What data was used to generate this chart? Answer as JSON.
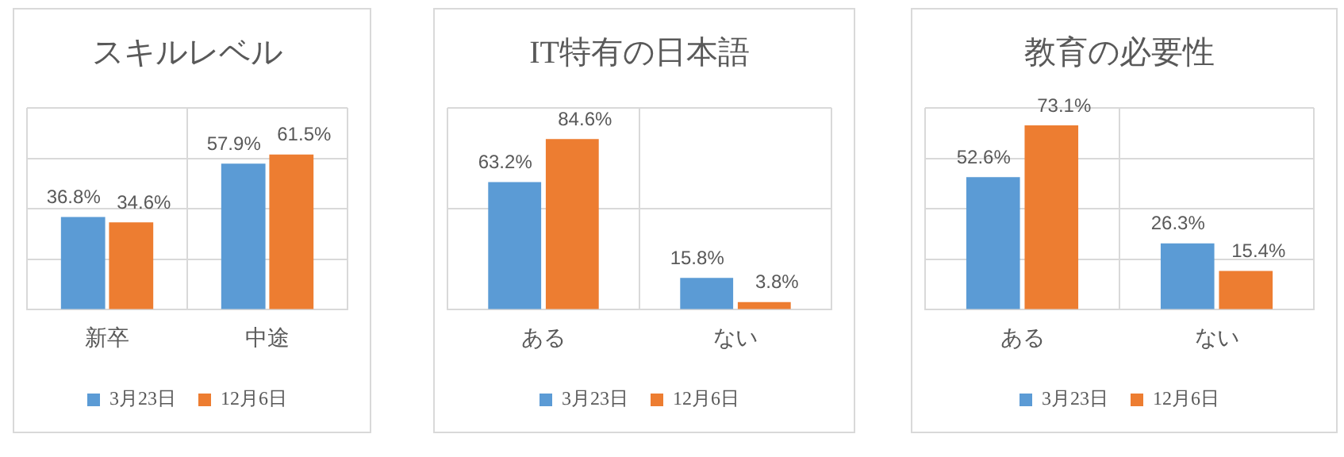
{
  "chart_data": [
    {
      "type": "bar",
      "title": "スキルレベル",
      "categories": [
        "新卒",
        "中途"
      ],
      "series": [
        {
          "name": "3月23日",
          "color": "#5b9bd5",
          "values": [
            36.8,
            57.9
          ],
          "value_labels": [
            "36.8%",
            "57.9%"
          ]
        },
        {
          "name": "12月6日",
          "color": "#ed7d31",
          "values": [
            34.6,
            61.5
          ],
          "value_labels": [
            "34.6%",
            "61.5%"
          ]
        }
      ],
      "ylim": [
        0,
        80
      ],
      "yticks": [
        {
          "value": 0,
          "label": null
        },
        {
          "value": 20,
          "label": null
        },
        {
          "value": 40,
          "label": null
        },
        {
          "value": 60,
          "label": null
        },
        {
          "value": 80,
          "label": null
        }
      ],
      "grid": true,
      "legend": "bottom",
      "tick_labels": "x"
    },
    {
      "type": "bar",
      "title": "IT特有の日本語",
      "categories": [
        "ある",
        "ない"
      ],
      "series": [
        {
          "name": "3月23日",
          "color": "#5b9bd5",
          "values": [
            63.2,
            15.8
          ],
          "value_labels": [
            "63.2%",
            "15.8%"
          ]
        },
        {
          "name": "12月6日",
          "color": "#ed7d31",
          "values": [
            84.6,
            3.8
          ],
          "value_labels": [
            "84.6%",
            "3.8%"
          ]
        }
      ],
      "ylim": [
        0,
        100
      ],
      "yticks": [
        {
          "value": 0,
          "label": null
        },
        {
          "value": 50,
          "label": null
        },
        {
          "value": 100,
          "label": null
        }
      ],
      "grid": true,
      "legend": "bottom",
      "tick_labels": "x"
    },
    {
      "type": "bar",
      "title": "教育の必要性",
      "categories": [
        "ある",
        "ない"
      ],
      "series": [
        {
          "name": "3月23日",
          "color": "#5b9bd5",
          "values": [
            52.6,
            26.3
          ],
          "value_labels": [
            "52.6%",
            "26.3%"
          ]
        },
        {
          "name": "12月6日",
          "color": "#ed7d31",
          "values": [
            73.1,
            15.4
          ],
          "value_labels": [
            "73.1%",
            "15.4%"
          ]
        }
      ],
      "ylim": [
        0,
        80
      ],
      "yticks": [
        {
          "value": 0,
          "label": null
        },
        {
          "value": 20,
          "label": null
        },
        {
          "value": 40,
          "label": null
        },
        {
          "value": 60,
          "label": null
        },
        {
          "value": 80,
          "label": null
        }
      ],
      "grid": true,
      "legend": "bottom",
      "tick_labels": "x"
    }
  ]
}
